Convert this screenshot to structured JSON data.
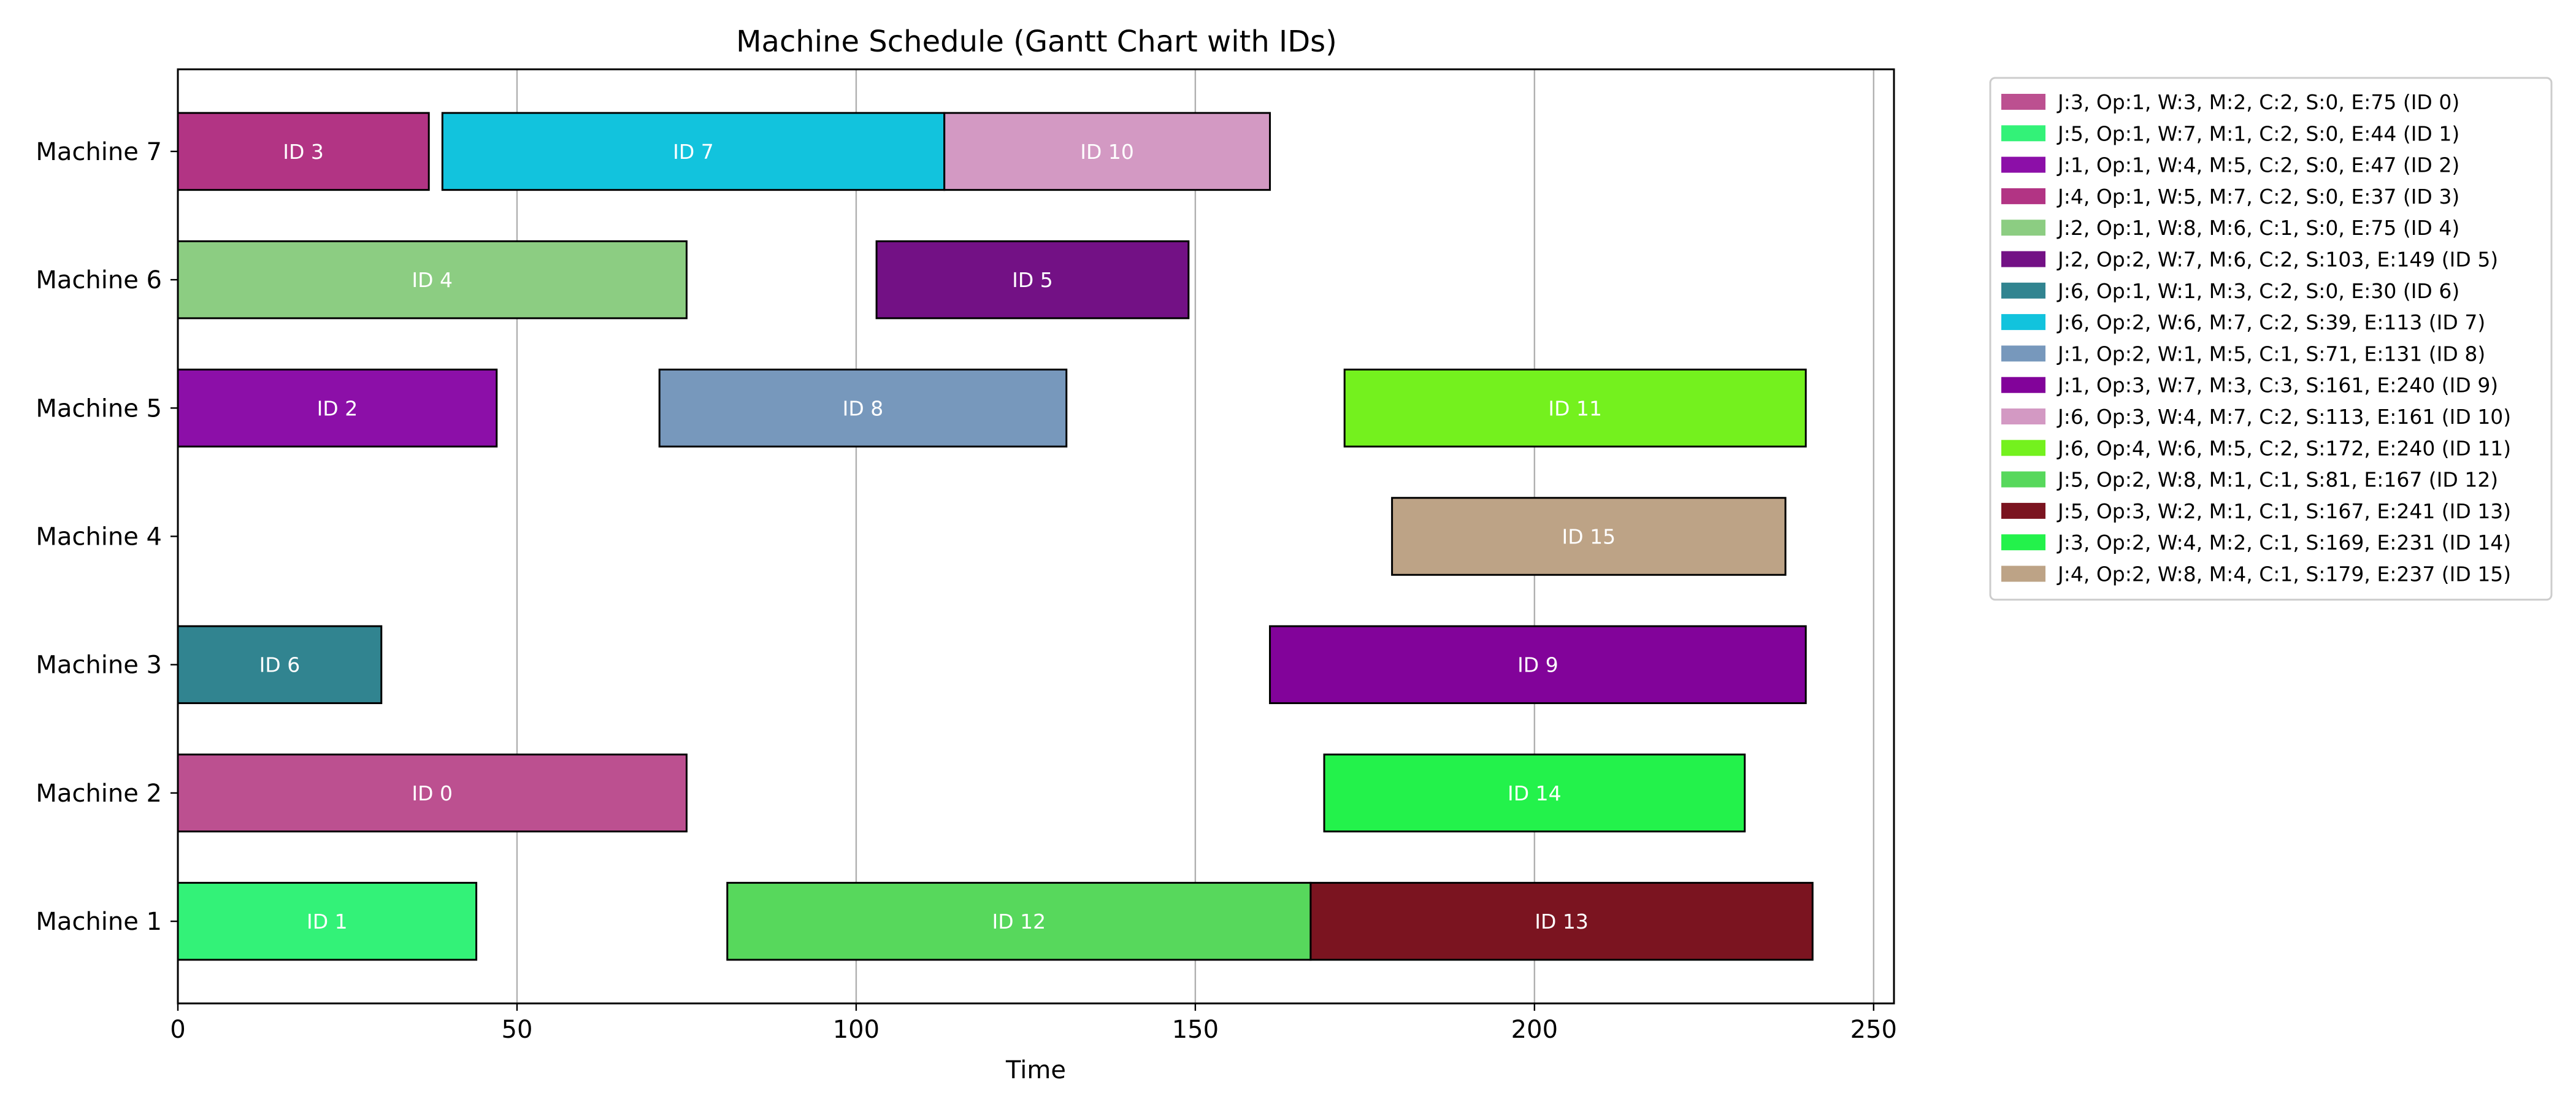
{
  "chart_data": {
    "type": "gantt",
    "title": "Machine Schedule (Gantt Chart with IDs)",
    "xlabel": "Time",
    "ylabel": "",
    "xlim": [
      0,
      253
    ],
    "xticks": [
      0,
      50,
      100,
      150,
      200,
      250
    ],
    "grid": "vertical",
    "legend_position": "outside-top-right",
    "machines": [
      "Machine 1",
      "Machine 2",
      "Machine 3",
      "Machine 4",
      "Machine 5",
      "Machine 6",
      "Machine 7"
    ],
    "tasks": [
      {
        "id": 0,
        "bar_label": "ID 0",
        "machine": "Machine 2",
        "start": 0,
        "end": 75,
        "color": "#BC5090",
        "legend": "J:3, Op:1, W:3, M:2, C:2, S:0, E:75 (ID 0)"
      },
      {
        "id": 1,
        "bar_label": "ID 1",
        "machine": "Machine 1",
        "start": 0,
        "end": 44,
        "color": "#33F278",
        "legend": "J:5, Op:1, W:7, M:1, C:2, S:0, E:44 (ID 1)"
      },
      {
        "id": 2,
        "bar_label": "ID 2",
        "machine": "Machine 5",
        "start": 0,
        "end": 47,
        "color": "#8C0FA8",
        "legend": "J:1, Op:1, W:4, M:5, C:2, S:0, E:47 (ID 2)"
      },
      {
        "id": 3,
        "bar_label": "ID 3",
        "machine": "Machine 7",
        "start": 0,
        "end": 37,
        "color": "#B23484",
        "legend": "J:4, Op:1, W:5, M:7, C:2, S:0, E:37 (ID 3)"
      },
      {
        "id": 4,
        "bar_label": "ID 4",
        "machine": "Machine 6",
        "start": 0,
        "end": 75,
        "color": "#8CCD82",
        "legend": "J:2, Op:1, W:8, M:6, C:1, S:0, E:75 (ID 4)"
      },
      {
        "id": 5,
        "bar_label": "ID 5",
        "machine": "Machine 6",
        "start": 103,
        "end": 149,
        "color": "#731185",
        "legend": "J:2, Op:2, W:7, M:6, C:2, S:103, E:149 (ID 5)"
      },
      {
        "id": 6,
        "bar_label": "ID 6",
        "machine": "Machine 3",
        "start": 0,
        "end": 30,
        "color": "#318490",
        "legend": "J:6, Op:1, W:1, M:3, C:2, S:0, E:30 (ID 6)"
      },
      {
        "id": 7,
        "bar_label": "ID 7",
        "machine": "Machine 7",
        "start": 39,
        "end": 113,
        "color": "#12C3DD",
        "legend": "J:6, Op:2, W:6, M:7, C:2, S:39, E:113 (ID 7)"
      },
      {
        "id": 8,
        "bar_label": "ID 8",
        "machine": "Machine 5",
        "start": 71,
        "end": 131,
        "color": "#7798BC",
        "legend": "J:1, Op:2, W:1, M:5, C:1, S:71, E:131 (ID 8)"
      },
      {
        "id": 9,
        "bar_label": "ID 9",
        "machine": "Machine 3",
        "start": 161,
        "end": 240,
        "color": "#82039A",
        "legend": "J:1, Op:3, W:7, M:3, C:3, S:161, E:240 (ID 9)"
      },
      {
        "id": 10,
        "bar_label": "ID 10",
        "machine": "Machine 7",
        "start": 113,
        "end": 161,
        "color": "#D399C3",
        "legend": "J:6, Op:3, W:4, M:7, C:2, S:113, E:161 (ID 10)"
      },
      {
        "id": 11,
        "bar_label": "ID 11",
        "machine": "Machine 5",
        "start": 172,
        "end": 240,
        "color": "#74F11E",
        "legend": "J:6, Op:4, W:6, M:5, C:2, S:172, E:240 (ID 11)"
      },
      {
        "id": 12,
        "bar_label": "ID 12",
        "machine": "Machine 1",
        "start": 81,
        "end": 167,
        "color": "#57D85C",
        "legend": "J:5, Op:2, W:8, M:1, C:1, S:81, E:167 (ID 12)"
      },
      {
        "id": 13,
        "bar_label": "ID 13",
        "machine": "Machine 1",
        "start": 167,
        "end": 241,
        "color": "#7B1420",
        "legend": "J:5, Op:3, W:2, M:1, C:1, S:167, E:241 (ID 13)"
      },
      {
        "id": 14,
        "bar_label": "ID 14",
        "machine": "Machine 2",
        "start": 169,
        "end": 231,
        "color": "#23F24B",
        "legend": "J:3, Op:2, W:4, M:2, C:1, S:169, E:231 (ID 14)"
      },
      {
        "id": 15,
        "bar_label": "ID 15",
        "machine": "Machine 4",
        "start": 179,
        "end": 237,
        "color": "#BDA386",
        "legend": "J:4, Op:2, W:8, M:4, C:1, S:179, E:237 (ID 15)"
      }
    ]
  }
}
